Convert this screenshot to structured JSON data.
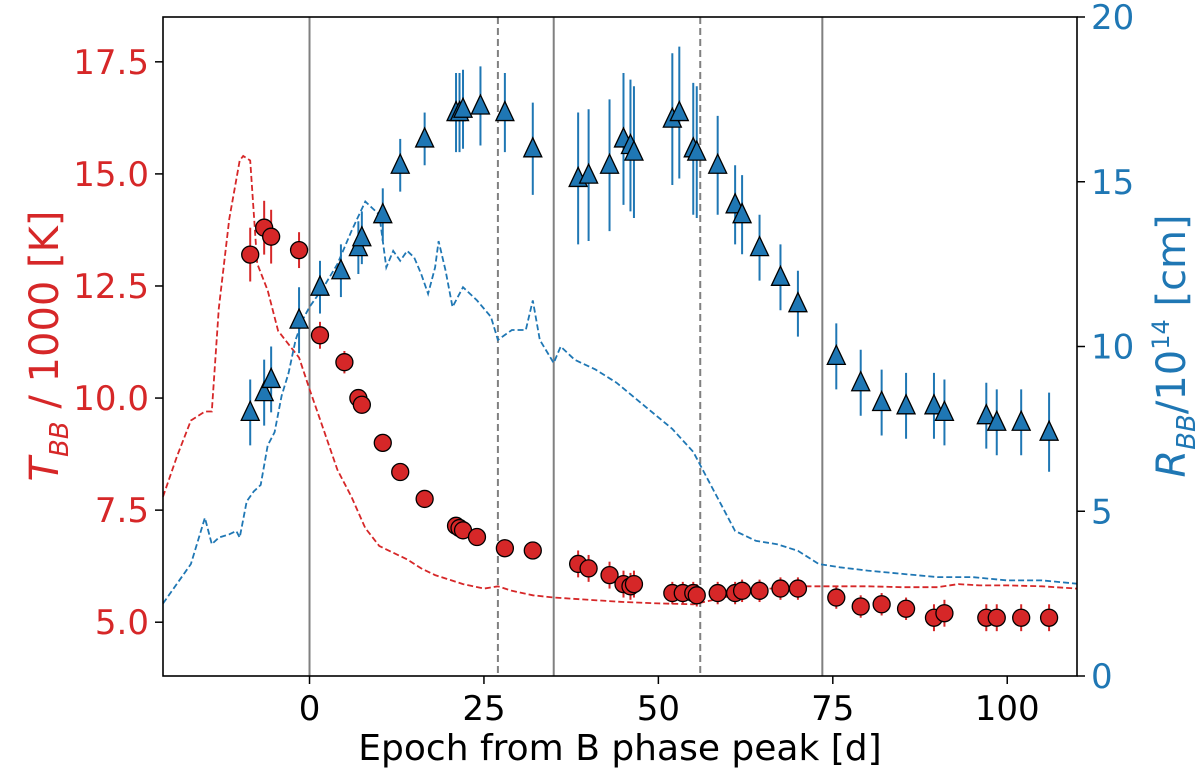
{
  "chart_data": {
    "type": "scatter",
    "title": "",
    "xlabel": "Epoch from B phase peak [d]",
    "ylabel_left": {
      "main": "T",
      "sub": "BB",
      "rest": " / 1000 [K]"
    },
    "ylabel_right": {
      "main": "R",
      "sub": "BB",
      "mid": "/10",
      "sup": "14",
      "rest": " [cm]"
    },
    "xlim": [
      -21,
      110
    ],
    "ylim_left": [
      3.8,
      18.5
    ],
    "ylim_right": [
      0,
      20
    ],
    "xticks": [
      0,
      25,
      50,
      75,
      100
    ],
    "xtick_labels": [
      "0",
      "25",
      "50",
      "75",
      "100"
    ],
    "yticks_left": [
      5,
      7.5,
      10,
      12.5,
      15,
      17.5
    ],
    "ytick_labels_left": [
      "5.0",
      "7.5",
      "10.0",
      "12.5",
      "15.0",
      "17.5"
    ],
    "yticks_right": [
      0,
      5,
      10,
      15,
      20
    ],
    "ytick_labels_right": [
      "0",
      "5",
      "10",
      "15",
      "20"
    ],
    "colors": {
      "temperature": "#d62728",
      "radius": "#1f77b4",
      "phase_line": "#808080"
    },
    "vlines_solid": [
      0,
      35,
      73.5
    ],
    "vlines_dashed": [
      27,
      56
    ],
    "grid": false,
    "series": [
      {
        "axis": "left",
        "marker": "circle",
        "points": [
          {
            "x": -8.5,
            "y": 13.2,
            "err": 0.6
          },
          {
            "x": -6.5,
            "y": 13.8,
            "err": 0.6
          },
          {
            "x": -5.5,
            "y": 13.6,
            "err": 0.6
          },
          {
            "x": -1.5,
            "y": 13.3,
            "err": 0.4
          },
          {
            "x": 1.5,
            "y": 11.4,
            "err": 0.3
          },
          {
            "x": 5,
            "y": 10.8,
            "err": 0.25
          },
          {
            "x": 7,
            "y": 10.0,
            "err": 0.2
          },
          {
            "x": 7.5,
            "y": 9.85,
            "err": 0.2
          },
          {
            "x": 10.5,
            "y": 9.0,
            "err": 0.2
          },
          {
            "x": 13,
            "y": 8.35,
            "err": 0.2
          },
          {
            "x": 16.5,
            "y": 7.75,
            "err": 0.2
          },
          {
            "x": 21,
            "y": 7.15,
            "err": 0.2
          },
          {
            "x": 21.5,
            "y": 7.1,
            "err": 0.2
          },
          {
            "x": 22,
            "y": 7.05,
            "err": 0.2
          },
          {
            "x": 24,
            "y": 6.9,
            "err": 0.2
          },
          {
            "x": 28,
            "y": 6.65,
            "err": 0.2
          },
          {
            "x": 32,
            "y": 6.6,
            "err": 0.2
          },
          {
            "x": 38.5,
            "y": 6.3,
            "err": 0.3
          },
          {
            "x": 40,
            "y": 6.2,
            "err": 0.3
          },
          {
            "x": 43,
            "y": 6.05,
            "err": 0.3
          },
          {
            "x": 45,
            "y": 5.85,
            "err": 0.3
          },
          {
            "x": 46,
            "y": 5.8,
            "err": 0.3
          },
          {
            "x": 46.5,
            "y": 5.85,
            "err": 0.3
          },
          {
            "x": 52,
            "y": 5.65,
            "err": 0.25
          },
          {
            "x": 53.5,
            "y": 5.65,
            "err": 0.25
          },
          {
            "x": 55,
            "y": 5.65,
            "err": 0.25
          },
          {
            "x": 55.5,
            "y": 5.6,
            "err": 0.25
          },
          {
            "x": 58.5,
            "y": 5.65,
            "err": 0.25
          },
          {
            "x": 61,
            "y": 5.65,
            "err": 0.25
          },
          {
            "x": 62,
            "y": 5.7,
            "err": 0.25
          },
          {
            "x": 64.5,
            "y": 5.7,
            "err": 0.25
          },
          {
            "x": 67.5,
            "y": 5.75,
            "err": 0.25
          },
          {
            "x": 70,
            "y": 5.75,
            "err": 0.25
          },
          {
            "x": 75.5,
            "y": 5.55,
            "err": 0.25
          },
          {
            "x": 79,
            "y": 5.35,
            "err": 0.25
          },
          {
            "x": 82,
            "y": 5.4,
            "err": 0.25
          },
          {
            "x": 85.5,
            "y": 5.3,
            "err": 0.25
          },
          {
            "x": 89.5,
            "y": 5.1,
            "err": 0.3
          },
          {
            "x": 91,
            "y": 5.2,
            "err": 0.3
          },
          {
            "x": 97,
            "y": 5.1,
            "err": 0.3
          },
          {
            "x": 98.5,
            "y": 5.1,
            "err": 0.3
          },
          {
            "x": 102,
            "y": 5.1,
            "err": 0.3
          },
          {
            "x": 106,
            "y": 5.1,
            "err": 0.3
          }
        ]
      },
      {
        "axis": "right",
        "marker": "triangle",
        "points": [
          {
            "x": -8.5,
            "y": 8.0,
            "err": 1.0
          },
          {
            "x": -6.5,
            "y": 8.6,
            "err": 1.0
          },
          {
            "x": -5.5,
            "y": 9.0,
            "err": 1.0
          },
          {
            "x": -1.5,
            "y": 10.8,
            "err": 1.0
          },
          {
            "x": 1.5,
            "y": 11.8,
            "err": 0.8
          },
          {
            "x": 4.5,
            "y": 12.3,
            "err": 0.8
          },
          {
            "x": 7,
            "y": 13.0,
            "err": 0.8
          },
          {
            "x": 7.5,
            "y": 13.3,
            "err": 0.8
          },
          {
            "x": 10.5,
            "y": 14.0,
            "err": 0.8
          },
          {
            "x": 13,
            "y": 15.5,
            "err": 0.8
          },
          {
            "x": 16.5,
            "y": 16.3,
            "err": 0.8
          },
          {
            "x": 21,
            "y": 17.1,
            "err": 1.2
          },
          {
            "x": 21.5,
            "y": 17.1,
            "err": 1.2
          },
          {
            "x": 22,
            "y": 17.2,
            "err": 1.2
          },
          {
            "x": 24.5,
            "y": 17.3,
            "err": 1.2
          },
          {
            "x": 28,
            "y": 17.1,
            "err": 1.2
          },
          {
            "x": 32,
            "y": 16.0,
            "err": 1.4
          },
          {
            "x": 38.5,
            "y": 15.1,
            "err": 2.0
          },
          {
            "x": 40,
            "y": 15.2,
            "err": 2.0
          },
          {
            "x": 43,
            "y": 15.5,
            "err": 2.0
          },
          {
            "x": 45,
            "y": 16.3,
            "err": 2.0
          },
          {
            "x": 46,
            "y": 16.1,
            "err": 2.0
          },
          {
            "x": 46.5,
            "y": 15.9,
            "err": 2.0
          },
          {
            "x": 52,
            "y": 16.9,
            "err": 2.0
          },
          {
            "x": 53,
            "y": 17.1,
            "err": 2.0
          },
          {
            "x": 55,
            "y": 16.0,
            "err": 2.0
          },
          {
            "x": 55.5,
            "y": 15.9,
            "err": 2.0
          },
          {
            "x": 58.5,
            "y": 15.5,
            "err": 1.5
          },
          {
            "x": 61,
            "y": 14.3,
            "err": 1.2
          },
          {
            "x": 62,
            "y": 14.0,
            "err": 1.2
          },
          {
            "x": 64.5,
            "y": 13.0,
            "err": 1.0
          },
          {
            "x": 67.5,
            "y": 12.1,
            "err": 1.0
          },
          {
            "x": 70,
            "y": 11.3,
            "err": 1.0
          },
          {
            "x": 75.5,
            "y": 9.7,
            "err": 1.0
          },
          {
            "x": 79,
            "y": 8.9,
            "err": 1.0
          },
          {
            "x": 82,
            "y": 8.3,
            "err": 1.0
          },
          {
            "x": 85.5,
            "y": 8.2,
            "err": 1.0
          },
          {
            "x": 89.5,
            "y": 8.2,
            "err": 1.0
          },
          {
            "x": 91,
            "y": 8.0,
            "err": 1.0
          },
          {
            "x": 97,
            "y": 7.9,
            "err": 1.0
          },
          {
            "x": 98.5,
            "y": 7.7,
            "err": 1.0
          },
          {
            "x": 102,
            "y": 7.7,
            "err": 1.0
          },
          {
            "x": 106,
            "y": 7.4,
            "err": 1.2
          }
        ]
      },
      {
        "axis": "left",
        "style": "dashed",
        "points": [
          {
            "x": -21,
            "y": 7.8
          },
          {
            "x": -19,
            "y": 8.7
          },
          {
            "x": -17,
            "y": 9.5
          },
          {
            "x": -15,
            "y": 9.7
          },
          {
            "x": -14,
            "y": 9.7
          },
          {
            "x": -13,
            "y": 12.0
          },
          {
            "x": -11.5,
            "y": 14.0
          },
          {
            "x": -10,
            "y": 15.3
          },
          {
            "x": -9.5,
            "y": 15.4
          },
          {
            "x": -8.5,
            "y": 15.3
          },
          {
            "x": -7.5,
            "y": 13.0
          },
          {
            "x": -6,
            "y": 12.4
          },
          {
            "x": -4.5,
            "y": 11.5
          },
          {
            "x": -3,
            "y": 11.2
          },
          {
            "x": -1.5,
            "y": 10.9
          },
          {
            "x": 0,
            "y": 10.2
          },
          {
            "x": 2,
            "y": 9.3
          },
          {
            "x": 4,
            "y": 8.4
          },
          {
            "x": 6,
            "y": 7.8
          },
          {
            "x": 8,
            "y": 7.1
          },
          {
            "x": 10,
            "y": 6.7
          },
          {
            "x": 12,
            "y": 6.55
          },
          {
            "x": 14,
            "y": 6.4
          },
          {
            "x": 16,
            "y": 6.2
          },
          {
            "x": 18,
            "y": 6.05
          },
          {
            "x": 20,
            "y": 5.95
          },
          {
            "x": 22,
            "y": 5.85
          },
          {
            "x": 25,
            "y": 5.75
          },
          {
            "x": 27,
            "y": 5.8
          },
          {
            "x": 29,
            "y": 5.7
          },
          {
            "x": 32,
            "y": 5.6
          },
          {
            "x": 35,
            "y": 5.55
          },
          {
            "x": 40,
            "y": 5.5
          },
          {
            "x": 45,
            "y": 5.45
          },
          {
            "x": 50,
            "y": 5.42
          },
          {
            "x": 55,
            "y": 5.4
          },
          {
            "x": 58,
            "y": 5.5
          },
          {
            "x": 62,
            "y": 5.65
          },
          {
            "x": 66,
            "y": 5.75
          },
          {
            "x": 70,
            "y": 5.8
          },
          {
            "x": 75,
            "y": 5.8
          },
          {
            "x": 80,
            "y": 5.8
          },
          {
            "x": 85,
            "y": 5.78
          },
          {
            "x": 90,
            "y": 5.78
          },
          {
            "x": 93,
            "y": 5.85
          },
          {
            "x": 96,
            "y": 5.82
          },
          {
            "x": 100,
            "y": 5.82
          },
          {
            "x": 105,
            "y": 5.8
          },
          {
            "x": 110,
            "y": 5.75
          }
        ]
      },
      {
        "axis": "right",
        "style": "dashed",
        "points": [
          {
            "x": -21,
            "y": 2.2
          },
          {
            "x": -19,
            "y": 2.8
          },
          {
            "x": -17,
            "y": 3.4
          },
          {
            "x": -15,
            "y": 4.8
          },
          {
            "x": -14,
            "y": 4.0
          },
          {
            "x": -13,
            "y": 4.2
          },
          {
            "x": -11.5,
            "y": 4.3
          },
          {
            "x": -10.5,
            "y": 4.4
          },
          {
            "x": -10,
            "y": 4.2
          },
          {
            "x": -9,
            "y": 5.3
          },
          {
            "x": -8,
            "y": 5.6
          },
          {
            "x": -7,
            "y": 5.8
          },
          {
            "x": -6,
            "y": 7.0
          },
          {
            "x": -5,
            "y": 7.4
          },
          {
            "x": -4,
            "y": 8.5
          },
          {
            "x": -3,
            "y": 9.2
          },
          {
            "x": -2,
            "y": 10.2
          },
          {
            "x": -1,
            "y": 10.8
          },
          {
            "x": 0,
            "y": 11.2
          },
          {
            "x": 2,
            "y": 11.8
          },
          {
            "x": 4,
            "y": 12.5
          },
          {
            "x": 6,
            "y": 13.5
          },
          {
            "x": 8,
            "y": 14.4
          },
          {
            "x": 9,
            "y": 14.2
          },
          {
            "x": 10,
            "y": 14.0
          },
          {
            "x": 11,
            "y": 12.4
          },
          {
            "x": 12,
            "y": 12.9
          },
          {
            "x": 13,
            "y": 12.6
          },
          {
            "x": 14,
            "y": 12.9
          },
          {
            "x": 15,
            "y": 12.7
          },
          {
            "x": 16,
            "y": 12.2
          },
          {
            "x": 17,
            "y": 11.6
          },
          {
            "x": 18,
            "y": 12.4
          },
          {
            "x": 18.5,
            "y": 13.2
          },
          {
            "x": 19.5,
            "y": 12.3
          },
          {
            "x": 20.5,
            "y": 11.2
          },
          {
            "x": 22,
            "y": 11.8
          },
          {
            "x": 24,
            "y": 11.4
          },
          {
            "x": 26,
            "y": 10.9
          },
          {
            "x": 27,
            "y": 10.2
          },
          {
            "x": 29,
            "y": 10.5
          },
          {
            "x": 31,
            "y": 10.5
          },
          {
            "x": 32,
            "y": 11.4
          },
          {
            "x": 33,
            "y": 10.2
          },
          {
            "x": 35,
            "y": 9.5
          },
          {
            "x": 36,
            "y": 10.0
          },
          {
            "x": 38,
            "y": 9.6
          },
          {
            "x": 41,
            "y": 9.3
          },
          {
            "x": 44,
            "y": 8.9
          },
          {
            "x": 48,
            "y": 8.2
          },
          {
            "x": 52,
            "y": 7.5
          },
          {
            "x": 55,
            "y": 6.8
          },
          {
            "x": 57,
            "y": 6.0
          },
          {
            "x": 59,
            "y": 5.2
          },
          {
            "x": 61,
            "y": 4.4
          },
          {
            "x": 64,
            "y": 4.1
          },
          {
            "x": 67,
            "y": 4.0
          },
          {
            "x": 70,
            "y": 3.8
          },
          {
            "x": 73,
            "y": 3.4
          },
          {
            "x": 76,
            "y": 3.3
          },
          {
            "x": 80,
            "y": 3.2
          },
          {
            "x": 85,
            "y": 3.1
          },
          {
            "x": 90,
            "y": 3.0
          },
          {
            "x": 95,
            "y": 3.0
          },
          {
            "x": 100,
            "y": 2.9
          },
          {
            "x": 105,
            "y": 2.9
          },
          {
            "x": 110,
            "y": 2.8
          }
        ]
      }
    ]
  }
}
